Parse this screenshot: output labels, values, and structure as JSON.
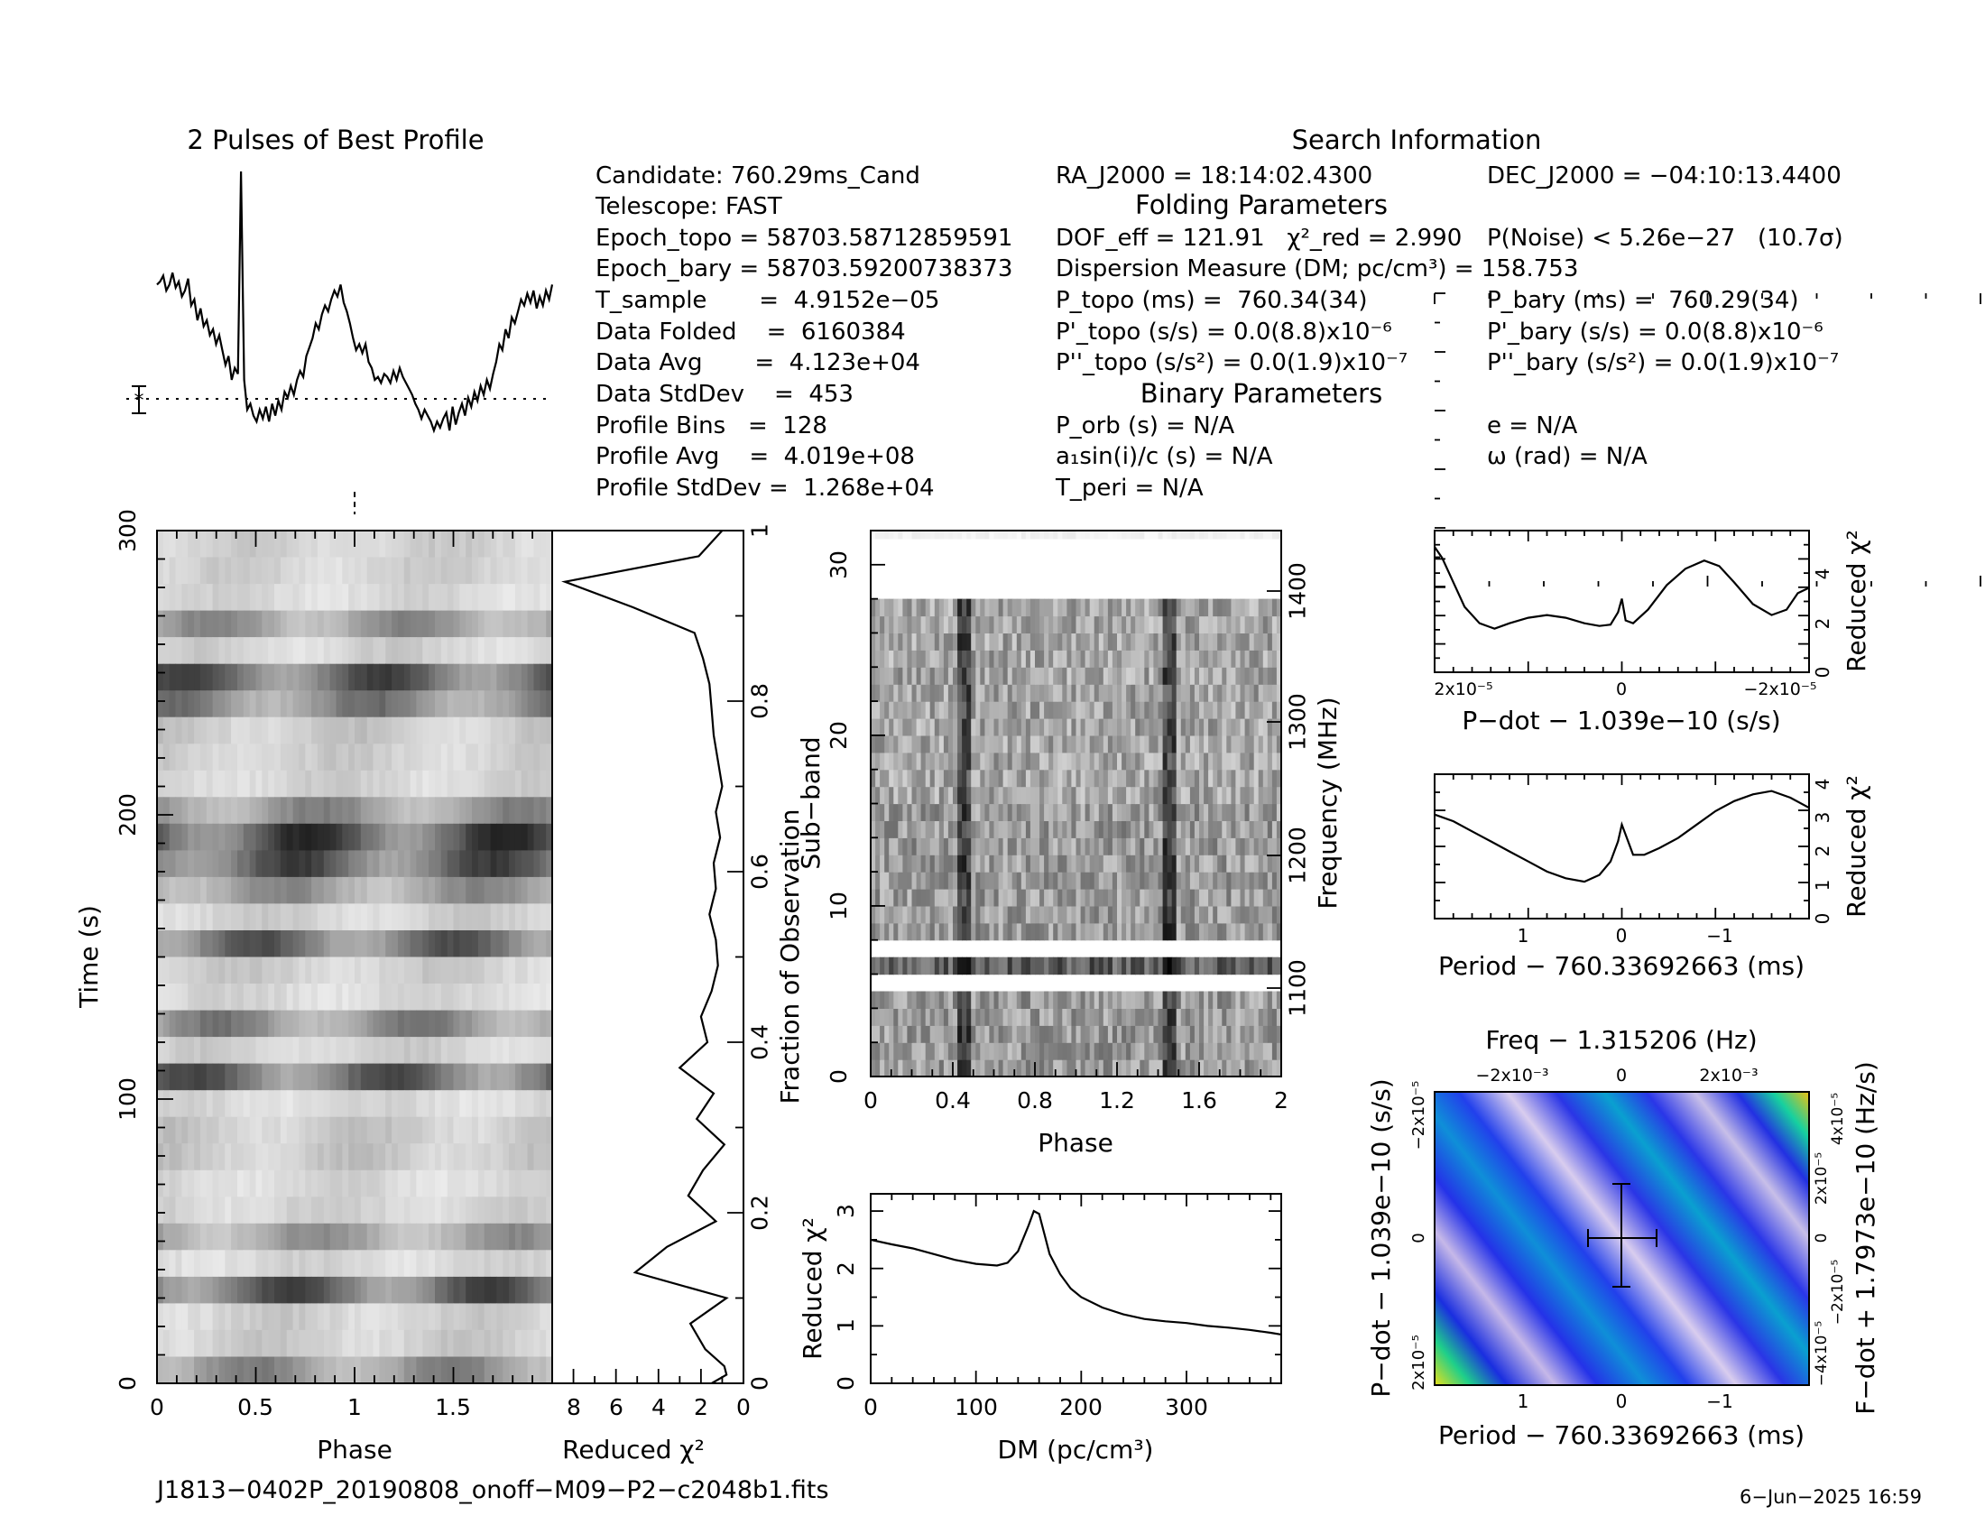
{
  "file_name": "J1813−0402P_20190808_onoff−M09−P2−c2048b1.fits",
  "date_stamp": "6−Jun−2025 16:59",
  "search_info": {
    "title": "Search Information",
    "folding_title": "Folding Parameters",
    "binary_title": "Binary Parameters",
    "col1": [
      "Candidate:  760.29ms_Cand",
      "Telescope:  FAST",
      "Epoch_topo = 58703.58712859591",
      "Epoch_bary = 58703.59200738373",
      "T_sample       =  4.9152e−05",
      "Data Folded    =  6160384",
      "Data Avg       =  4.123e+04",
      "Data StdDev    =  453",
      "Profile Bins   =  128",
      "Profile Avg    =  4.019e+08",
      "Profile StdDev =  1.268e+04"
    ],
    "ra": "RA_J2000 = 18:14:02.4300",
    "dec": "DEC_J2000 = −04:10:13.4400",
    "dof": "DOF_eff = 121.91   χ²_red = 2.990",
    "pnoise": "P(Noise) < 5.26e−27   (10.7σ)",
    "dm": "Dispersion Measure (DM; pc/cm³) = 158.753",
    "ptopo": "P_topo (ms) =  760.34(34)",
    "pbary": "P_bary (ms) =  760.29(34)",
    "pdtopo": "P'_topo (s/s) = 0.0(8.8)x10⁻⁶",
    "pdbary": "P'_bary (s/s) = 0.0(8.8)x10⁻⁶",
    "pddtopo": "P''_topo (s/s²) = 0.0(1.9)x10⁻⁷",
    "pddbary": "P''_bary (s/s²) = 0.0(1.9)x10⁻⁷",
    "porb": "P_orb (s) = N/A",
    "ecc": "e = N/A",
    "asini": "a₁sin(i)/c (s) = N/A",
    "omega": "ω (rad) = N/A",
    "tperi": "T_peri = N/A"
  },
  "chart_data": [
    {
      "id": "profile",
      "type": "line",
      "title": "2 Pulses of Best Profile",
      "x_range": [
        0,
        2
      ],
      "y": [
        0.62,
        0.63,
        0.65,
        0.6,
        0.62,
        0.66,
        0.61,
        0.63,
        0.58,
        0.6,
        0.64,
        0.55,
        0.57,
        0.5,
        0.54,
        0.48,
        0.5,
        0.45,
        0.47,
        0.42,
        0.45,
        0.4,
        0.35,
        0.38,
        0.3,
        0.34,
        0.32,
        1.0,
        0.3,
        0.2,
        0.22,
        0.18,
        0.16,
        0.2,
        0.17,
        0.21,
        0.16,
        0.22,
        0.18,
        0.23,
        0.2,
        0.26,
        0.24,
        0.28,
        0.25,
        0.3,
        0.33,
        0.31,
        0.38,
        0.41,
        0.44,
        0.49,
        0.47,
        0.52,
        0.55,
        0.53,
        0.57,
        0.6,
        0.58,
        0.62,
        0.56,
        0.53,
        0.49,
        0.44,
        0.4,
        0.42,
        0.39,
        0.42,
        0.36,
        0.34,
        0.3,
        0.31,
        0.29,
        0.32,
        0.31,
        0.29,
        0.33,
        0.3,
        0.34,
        0.31,
        0.29,
        0.27,
        0.25,
        0.22,
        0.2,
        0.17,
        0.2,
        0.18,
        0.16,
        0.13,
        0.16,
        0.14,
        0.17,
        0.19,
        0.13,
        0.21,
        0.15,
        0.19,
        0.22,
        0.18,
        0.24,
        0.21,
        0.26,
        0.23,
        0.28,
        0.25,
        0.3,
        0.27,
        0.32,
        0.36,
        0.42,
        0.4,
        0.47,
        0.44,
        0.51,
        0.49,
        0.53,
        0.57,
        0.55,
        0.59,
        0.56,
        0.6,
        0.54,
        0.58,
        0.55,
        0.6,
        0.57,
        0.62
      ]
    },
    {
      "id": "time_phase",
      "type": "heatmap",
      "xlabel": "Phase",
      "ylabel": "Time (s)",
      "x_range": [
        0,
        2
      ],
      "y_range": [
        0,
        300
      ],
      "x_ticks": [
        "0",
        "0.5",
        "1",
        "1.5"
      ],
      "y_ticks": [
        "0",
        "100",
        "200",
        "300"
      ]
    },
    {
      "id": "time_chi2",
      "type": "line",
      "xlabel": "Reduced χ²",
      "ylabel": "Fraction of Observation",
      "x_range": [
        9,
        0
      ],
      "y_range": [
        0,
        1
      ],
      "x_ticks": [
        "8",
        "6",
        "4",
        "2",
        "0"
      ],
      "y_ticks": [
        "0",
        "0.2",
        "0.4",
        "0.6",
        "0.8",
        "1"
      ],
      "x": [
        1.0,
        2.1,
        8.4,
        5.2,
        2.3,
        1.9,
        1.6,
        1.5,
        1.4,
        1.2,
        1.0,
        1.3,
        1.1,
        1.4,
        1.3,
        1.6,
        1.3,
        1.2,
        1.5,
        2.0,
        1.7,
        3.0,
        1.4,
        2.2,
        0.9,
        1.9,
        2.6,
        1.3,
        3.6,
        5.1,
        0.8,
        2.5,
        1.8,
        0.9,
        0.8,
        1.5
      ],
      "y": [
        1.0,
        0.97,
        0.94,
        0.91,
        0.88,
        0.85,
        0.82,
        0.79,
        0.76,
        0.73,
        0.7,
        0.67,
        0.64,
        0.61,
        0.58,
        0.55,
        0.52,
        0.49,
        0.46,
        0.43,
        0.4,
        0.37,
        0.34,
        0.31,
        0.28,
        0.25,
        0.22,
        0.19,
        0.16,
        0.13,
        0.1,
        0.07,
        0.04,
        0.02,
        0.01,
        0.0
      ]
    },
    {
      "id": "freq_phase",
      "type": "heatmap",
      "xlabel": "Phase",
      "ylabel": "Sub−band",
      "y2label": "Frequency (MHz)",
      "x_range": [
        0,
        2
      ],
      "y_range": [
        0,
        32
      ],
      "x_ticks": [
        "0",
        "0.4",
        "0.8",
        "1.2",
        "1.6",
        "2"
      ],
      "y_ticks": [
        "0",
        "10",
        "20",
        "30"
      ],
      "y2_ticks": [
        "1100",
        "1200",
        "1300",
        "1400"
      ]
    },
    {
      "id": "dm_chi2",
      "type": "line",
      "xlabel": "DM (pc/cm³)",
      "ylabel": "Reduced χ²",
      "x_range": [
        0,
        390
      ],
      "y_range": [
        0,
        3.3
      ],
      "x_ticks": [
        "0",
        "100",
        "200",
        "300"
      ],
      "y_ticks": [
        "0",
        "1",
        "2",
        "3"
      ],
      "x": [
        0,
        20,
        40,
        60,
        80,
        100,
        120,
        130,
        140,
        150,
        155,
        160,
        165,
        170,
        180,
        190,
        200,
        220,
        240,
        260,
        280,
        300,
        320,
        340,
        360,
        380,
        390
      ],
      "y": [
        2.5,
        2.42,
        2.35,
        2.25,
        2.15,
        2.08,
        2.05,
        2.1,
        2.3,
        2.75,
        3.0,
        2.95,
        2.6,
        2.25,
        1.9,
        1.65,
        1.5,
        1.32,
        1.2,
        1.12,
        1.08,
        1.05,
        1.0,
        0.97,
        0.93,
        0.88,
        0.85
      ]
    },
    {
      "id": "pdot_chi2",
      "type": "line",
      "xlabel": "P−dot − 1.039e−10 (s/s)",
      "ylabel": "Reduced χ²",
      "x_ticks": [
        "2x10⁻⁵",
        "0",
        "−2x10⁻⁵"
      ],
      "y_ticks": [
        "0",
        "2",
        "4"
      ],
      "y_range": [
        0,
        5.2
      ],
      "x": [
        0,
        0.02,
        0.05,
        0.08,
        0.12,
        0.16,
        0.2,
        0.25,
        0.3,
        0.35,
        0.4,
        0.44,
        0.47,
        0.49,
        0.5,
        0.51,
        0.53,
        0.57,
        0.62,
        0.67,
        0.72,
        0.76,
        0.8,
        0.85,
        0.9,
        0.94,
        0.97,
        1.0
      ],
      "y": [
        4.6,
        4.2,
        3.3,
        2.4,
        1.8,
        1.6,
        1.8,
        2.0,
        2.1,
        2.0,
        1.8,
        1.7,
        1.75,
        2.2,
        2.7,
        1.9,
        1.8,
        2.3,
        3.2,
        3.8,
        4.1,
        3.9,
        3.3,
        2.5,
        2.1,
        2.3,
        2.9,
        3.1
      ]
    },
    {
      "id": "period_chi2",
      "type": "line",
      "xlabel": "Period − 760.33692663 (ms)",
      "ylabel": "Reduced χ²",
      "x_ticks": [
        "1",
        "0",
        "−1"
      ],
      "y_ticks": [
        "0",
        "1",
        "2",
        "3",
        "4"
      ],
      "y_range": [
        0,
        4.3
      ],
      "x": [
        0,
        0.05,
        0.1,
        0.15,
        0.2,
        0.25,
        0.3,
        0.35,
        0.4,
        0.44,
        0.47,
        0.49,
        0.5,
        0.51,
        0.53,
        0.56,
        0.6,
        0.65,
        0.7,
        0.75,
        0.8,
        0.85,
        0.9,
        0.95,
        1.0
      ],
      "y": [
        3.1,
        2.9,
        2.6,
        2.3,
        2.0,
        1.7,
        1.4,
        1.2,
        1.1,
        1.3,
        1.7,
        2.3,
        2.8,
        2.5,
        1.9,
        1.9,
        2.1,
        2.4,
        2.8,
        3.2,
        3.5,
        3.7,
        3.8,
        3.6,
        3.3
      ]
    },
    {
      "id": "p_pdot_plane",
      "type": "heatmap",
      "title": "Freq − 1.315206 (Hz)",
      "xlabel": "Period − 760.33692663 (ms)",
      "ylabel": "P−dot − 1.039e−10 (s/s)",
      "y2label": "F−dot + 1.7973e−10 (Hz/s)",
      "x_ticks": [
        "1",
        "0",
        "−1"
      ],
      "top_ticks": [
        "−2x10⁻³",
        "0",
        "2x10⁻³"
      ],
      "y_ticks": [
        "2x10⁻⁵",
        "0",
        "−2x10⁻⁵"
      ],
      "y2_ticks": [
        "−4x10⁻⁵",
        "−2x10⁻⁵",
        "0",
        "2x10⁻⁵",
        "4x10⁻⁵"
      ]
    }
  ]
}
